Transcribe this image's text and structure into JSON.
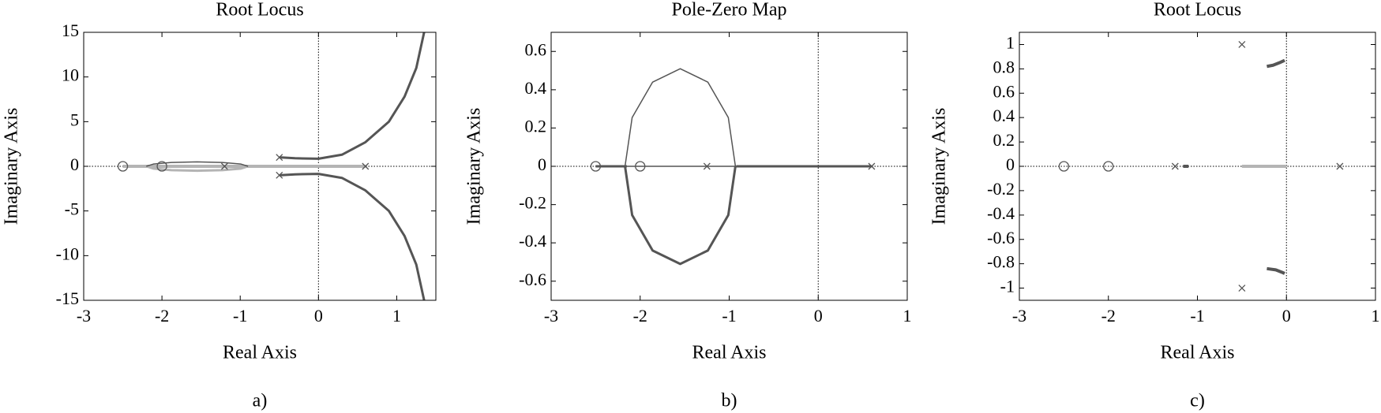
{
  "chart_data": [
    {
      "type": "line",
      "title": "Root Locus",
      "xlabel": "Real Axis",
      "ylabel": "Imaginary Axis",
      "caption": "a)",
      "xlim": [
        -3,
        1.5
      ],
      "ylim": [
        -15,
        15
      ],
      "xticks": [
        -3,
        -2,
        -1,
        0,
        1
      ],
      "yticks": [
        -15,
        -10,
        -5,
        0,
        5,
        10,
        15
      ],
      "zero_lines": true,
      "series": [
        {
          "color": "#b4b4b4",
          "width": 4,
          "x": [
            -2.5,
            0.6
          ],
          "values": [
            0,
            0
          ]
        },
        {
          "color": "#b4b4b4",
          "width": 3,
          "x": [
            -0.9,
            -0.99,
            -1.23,
            -1.55,
            -1.88,
            -2.11,
            -2.2
          ],
          "values": [
            0,
            -0.25,
            -0.43,
            -0.5,
            -0.43,
            -0.25,
            0
          ]
        },
        {
          "color": "#555555",
          "width": 1.5,
          "x": [
            -0.9,
            -0.99,
            -1.23,
            -1.55,
            -1.88,
            -2.11,
            -2.2
          ],
          "values": [
            0,
            0.25,
            0.43,
            0.5,
            0.43,
            0.25,
            0
          ]
        },
        {
          "color": "#555555",
          "width": 3,
          "x": [
            -0.5,
            -0.3,
            0,
            0.3,
            0.6,
            0.9,
            1.1,
            1.25,
            1.35
          ],
          "values": [
            1,
            0.9,
            0.85,
            1.3,
            2.7,
            5,
            7.8,
            11,
            15
          ]
        },
        {
          "color": "#555555",
          "width": 3,
          "x": [
            -0.5,
            -0.3,
            0,
            0.3,
            0.6,
            0.9,
            1.1,
            1.25,
            1.35
          ],
          "values": [
            -1,
            -0.9,
            -0.85,
            -1.3,
            -2.7,
            -5,
            -7.8,
            -11,
            -15
          ]
        },
        {
          "color": "#555555",
          "marker": "x",
          "x": [
            -0.5,
            -0.5,
            -1.2,
            0.6
          ],
          "values": [
            1,
            -1,
            0,
            0
          ]
        },
        {
          "color": "#555555",
          "marker": "o",
          "x": [
            -2.5,
            -2
          ],
          "values": [
            0,
            0
          ]
        }
      ]
    },
    {
      "type": "line",
      "title": "Pole-Zero Map",
      "xlabel": "Real Axis",
      "ylabel": "Imaginary Axis",
      "caption": "b)",
      "xlim": [
        -3,
        1
      ],
      "ylim": [
        -0.7,
        0.7
      ],
      "xticks": [
        -3,
        -2,
        -1,
        0,
        1
      ],
      "yticks": [
        -0.6,
        -0.4,
        -0.2,
        0,
        0.2,
        0.4,
        0.6
      ],
      "zero_lines": true,
      "series": [
        {
          "color": "#555555",
          "width": 3,
          "x": [
            -2.5,
            -2.15
          ],
          "values": [
            0,
            0
          ]
        },
        {
          "color": "#555555",
          "width": 1.5,
          "x": [
            -2.15,
            -0.92
          ],
          "values": [
            0,
            0
          ]
        },
        {
          "color": "#555555",
          "width": 3,
          "x": [
            -0.92,
            0.6
          ],
          "values": [
            0,
            0
          ]
        },
        {
          "color": "#555555",
          "width": 1.5,
          "x": [
            -0.93,
            -1.01,
            -1.24,
            -1.55,
            -1.86,
            -2.09,
            -2.17
          ],
          "values": [
            0,
            0.255,
            0.44,
            0.51,
            0.44,
            0.255,
            0
          ]
        },
        {
          "color": "#555555",
          "width": 3,
          "x": [
            -0.93,
            -1.01,
            -1.24,
            -1.55,
            -1.86,
            -2.09,
            -2.17
          ],
          "values": [
            0,
            -0.255,
            -0.44,
            -0.51,
            -0.44,
            -0.255,
            0
          ]
        },
        {
          "color": "#555555",
          "marker": "x",
          "x": [
            -1.25,
            0.6
          ],
          "values": [
            0,
            0
          ]
        },
        {
          "color": "#555555",
          "marker": "o",
          "x": [
            -2.5,
            -2
          ],
          "values": [
            0,
            0
          ]
        }
      ]
    },
    {
      "type": "line",
      "title": "Root Locus",
      "xlabel": "Real Axis",
      "ylabel": "Imaginary Axis",
      "caption": "c)",
      "xlim": [
        -3,
        1
      ],
      "ylim": [
        -1.1,
        1.1
      ],
      "xticks": [
        -3,
        -2,
        -1,
        0,
        1
      ],
      "yticks": [
        -1,
        -0.8,
        -0.6,
        -0.4,
        -0.2,
        0,
        0.2,
        0.4,
        0.6,
        0.8,
        1
      ],
      "zero_lines": true,
      "series": [
        {
          "color": "#b4b4b4",
          "width": 4,
          "x": [
            -0.5,
            0
          ],
          "values": [
            0,
            0
          ]
        },
        {
          "color": "#555555",
          "width": 4,
          "x": [
            -1.16,
            -1.1
          ],
          "values": [
            0,
            0
          ]
        },
        {
          "color": "#555555",
          "width": 4,
          "x": [
            -0.22,
            -0.15,
            -0.08,
            -0.02
          ],
          "values": [
            0.82,
            0.83,
            0.85,
            0.87
          ]
        },
        {
          "color": "#555555",
          "width": 4,
          "x": [
            -0.22,
            -0.12,
            -0.05,
            -0.02
          ],
          "values": [
            -0.84,
            -0.85,
            -0.87,
            -0.88
          ]
        },
        {
          "color": "#555555",
          "marker": "x",
          "x": [
            -0.5,
            -0.5,
            -1.25,
            0.6
          ],
          "values": [
            1,
            -1,
            0,
            0
          ]
        },
        {
          "color": "#555555",
          "marker": "o",
          "x": [
            -2.5,
            -2
          ],
          "values": [
            0,
            0
          ]
        }
      ]
    }
  ]
}
